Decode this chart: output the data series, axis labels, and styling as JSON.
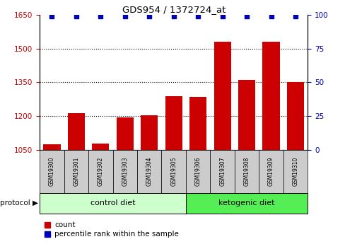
{
  "title": "GDS954 / 1372724_at",
  "samples": [
    "GSM19300",
    "GSM19301",
    "GSM19302",
    "GSM19303",
    "GSM19304",
    "GSM19305",
    "GSM19306",
    "GSM19307",
    "GSM19308",
    "GSM19309",
    "GSM19310"
  ],
  "counts": [
    1075,
    1215,
    1080,
    1195,
    1205,
    1290,
    1285,
    1530,
    1360,
    1530,
    1350
  ],
  "percentile_ranks": [
    99,
    99,
    99,
    99,
    99,
    99,
    99,
    99,
    99,
    99,
    99
  ],
  "ylim_left": [
    1050,
    1650
  ],
  "ylim_right": [
    0,
    100
  ],
  "yticks_left": [
    1050,
    1200,
    1350,
    1500,
    1650
  ],
  "yticks_right": [
    0,
    25,
    50,
    75,
    100
  ],
  "bar_color": "#cc0000",
  "dot_color": "#0000bb",
  "bar_width": 0.7,
  "ctrl_count": 6,
  "keto_count": 5,
  "control_label": "control diet",
  "ketogenic_label": "ketogenic diet",
  "protocol_label": "protocol",
  "legend_count": "count",
  "legend_percentile": "percentile rank within the sample",
  "control_bg": "#ccffcc",
  "ketogenic_bg": "#55ee55",
  "sample_bg": "#cccccc",
  "left_tick_color": "#cc0000",
  "right_tick_color": "#0000bb",
  "grid_yticks": [
    1200,
    1350,
    1500
  ],
  "dot_pct_value": 99
}
